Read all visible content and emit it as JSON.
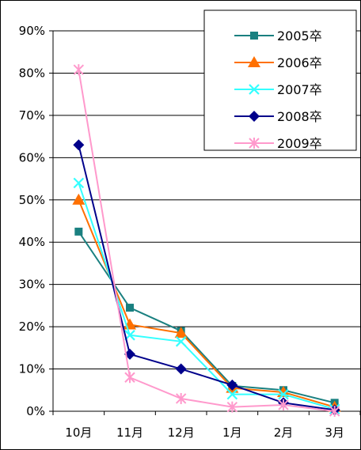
{
  "chart_data": {
    "type": "line",
    "title": "",
    "xlabel": "",
    "ylabel": "",
    "categories": [
      "10月",
      "11月",
      "12月",
      "1月",
      "2月",
      "3月"
    ],
    "y_ticks": [
      "0%",
      "10%",
      "20%",
      "30%",
      "40%",
      "50%",
      "60%",
      "70%",
      "80%",
      "90%"
    ],
    "ylim": [
      0,
      90
    ],
    "y_unit": "%",
    "grid": "horizontal",
    "legend_position": "top-right",
    "series": [
      {
        "name": "2005卒",
        "color": "#1a8080",
        "marker": "square",
        "values": [
          42.5,
          24.5,
          19,
          6,
          5,
          2
        ]
      },
      {
        "name": "2006卒",
        "color": "#ff7000",
        "marker": "triangle",
        "values": [
          50,
          20.5,
          18.5,
          5.5,
          4.5,
          1
        ]
      },
      {
        "name": "2007卒",
        "color": "#33ffff",
        "marker": "x",
        "values": [
          54,
          18,
          16.5,
          4,
          4,
          0.5
        ]
      },
      {
        "name": "2008卒",
        "color": "#00008b",
        "marker": "diamond",
        "values": [
          63,
          13.5,
          10,
          6.2,
          2,
          0.3
        ]
      },
      {
        "name": "2009卒",
        "color": "#ff99cc",
        "marker": "asterisk",
        "values": [
          80.8,
          8,
          3,
          1,
          1.5,
          0
        ]
      }
    ]
  }
}
